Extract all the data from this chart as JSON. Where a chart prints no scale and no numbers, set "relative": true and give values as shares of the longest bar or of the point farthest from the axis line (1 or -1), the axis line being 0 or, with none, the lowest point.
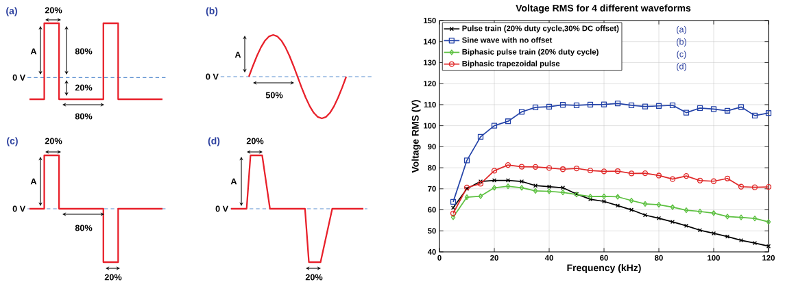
{
  "chart_data": [
    {
      "type": "step",
      "relative": true,
      "title": "(a)",
      "color": "#e8202a",
      "categories": [
        null,
        null,
        null,
        null,
        null,
        null,
        null,
        null,
        null,
        null
      ],
      "values": [
        -0.4,
        1,
        -0.4,
        -0.4,
        -0.4,
        1,
        -0.4,
        -0.4,
        -0.4,
        -0.4
      ],
      "ref_lines": [
        {
          "axis": "y",
          "value": 0,
          "label": "0 V",
          "color": "#5b8fd0",
          "line_style": "dashed"
        }
      ],
      "annotations": [
        "20%",
        "A",
        "80%",
        "20%",
        "80%"
      ]
    },
    {
      "type": "line",
      "relative": true,
      "title": "(b)",
      "color": "#e8202a",
      "categories": [
        null,
        null,
        null,
        null,
        null,
        null,
        null,
        null,
        null,
        null,
        null,
        null,
        null,
        null,
        null,
        null,
        null,
        null,
        null,
        null,
        null,
        null,
        null,
        null,
        null
      ],
      "values": [
        0,
        0.259,
        0.5,
        0.707,
        0.866,
        0.966,
        1,
        0.966,
        0.866,
        0.707,
        0.5,
        0.259,
        0,
        -0.259,
        -0.5,
        -0.707,
        -0.866,
        -0.966,
        -1,
        -0.966,
        -0.866,
        -0.707,
        -0.5,
        -0.259,
        0
      ],
      "ref_lines": [
        {
          "axis": "y",
          "value": 0,
          "label": "0 V",
          "color": "#5b8fd0",
          "line_style": "dashed"
        }
      ],
      "annotations": [
        "A",
        "50%"
      ]
    },
    {
      "type": "step",
      "relative": true,
      "title": "(c)",
      "color": "#e8202a",
      "categories": [
        null,
        null,
        null,
        null,
        null,
        null,
        null,
        null,
        null,
        null
      ],
      "values": [
        0,
        1,
        0,
        0,
        0,
        -1,
        0,
        0,
        0,
        0
      ],
      "ref_lines": [
        {
          "axis": "y",
          "value": 0,
          "label": "0 V",
          "color": "#5b8fd0",
          "line_style": "dashed"
        }
      ],
      "annotations": [
        "20%",
        "A",
        "80%",
        "20%"
      ]
    },
    {
      "type": "line",
      "relative": true,
      "title": "(d)",
      "color": "#e8202a",
      "categories": [
        null,
        null,
        null,
        null,
        null,
        null,
        null,
        null,
        null,
        null,
        null,
        null,
        null,
        null,
        null,
        null,
        null,
        null,
        null,
        null,
        null,
        null,
        null,
        null,
        null,
        null,
        null,
        null,
        null,
        null,
        null,
        null,
        null,
        null,
        null
      ],
      "values": [
        0,
        0,
        0,
        0,
        0,
        1,
        1,
        1,
        1,
        0.5,
        0,
        0,
        0,
        0,
        0,
        0,
        0,
        0,
        0,
        0,
        -1,
        -1,
        -1,
        -1,
        -0.667,
        -0.333,
        0,
        0,
        0,
        0,
        0,
        0,
        0,
        0,
        0
      ],
      "ref_lines": [
        {
          "axis": "y",
          "value": 0,
          "label": "0 V",
          "color": "#5b8fd0",
          "line_style": "dashed"
        }
      ],
      "annotations": [
        "20%",
        "A",
        "20%"
      ]
    },
    {
      "type": "line",
      "title": "Voltage RMS for 4 different waveforms",
      "xlabel": "Frequency (kHz)",
      "ylabel": "Voltage RMS (V)",
      "x": [
        5,
        10,
        15,
        20,
        25,
        30,
        35,
        40,
        45,
        50,
        55,
        60,
        65,
        70,
        75,
        80,
        85,
        90,
        95,
        100,
        105,
        110,
        115,
        120
      ],
      "series": [
        {
          "name": "Pulse train (20% duty cycle,30% DC offset)",
          "color": "#000000",
          "marker": "cross",
          "values": [
            61,
            70,
            73.5,
            74,
            74,
            73.5,
            71.5,
            71,
            70.5,
            67.5,
            65,
            64,
            62,
            60,
            57.5,
            56,
            54.3,
            52.4,
            50.3,
            48.8,
            47.3,
            45.5,
            44.2,
            42.7
          ]
        },
        {
          "name": "Sine wave with no offset",
          "color": "#2443a8",
          "marker": "square",
          "values": [
            63.8,
            83.5,
            94.7,
            100,
            102.1,
            106.6,
            108.7,
            109,
            109.9,
            109.7,
            110,
            110.1,
            110.6,
            109.7,
            109.1,
            109.4,
            109.7,
            106.2,
            108.4,
            107.9,
            107.1,
            108.9,
            104.8,
            106
          ]
        },
        {
          "name": "Biphasic pulse train (20% duty cycle)",
          "color": "#5cc040",
          "marker": "diamond",
          "values": [
            56.5,
            66,
            66.5,
            70.5,
            71.2,
            70.5,
            69,
            68.8,
            68.3,
            67.3,
            66.3,
            66.4,
            66.2,
            64.4,
            62.8,
            62.4,
            61.3,
            59.8,
            59.2,
            58.4,
            56.8,
            56.4,
            55.9,
            54.3
          ]
        },
        {
          "name": "Biphasic trapezoidal pulse",
          "color": "#e02828",
          "marker": "circle",
          "values": [
            58.3,
            70.6,
            72.4,
            78.6,
            81.3,
            80.5,
            80.4,
            79.9,
            79.3,
            79.7,
            78.7,
            78.3,
            78.4,
            77.3,
            77.4,
            76.3,
            74.6,
            76.1,
            73.9,
            73.6,
            74.9,
            71,
            70.7,
            70.9
          ]
        }
      ],
      "xlim": [
        0,
        120
      ],
      "ylim": [
        40,
        150
      ],
      "xticks": [
        0,
        20,
        40,
        60,
        80,
        100,
        120
      ],
      "yticks": [
        40,
        50,
        60,
        70,
        80,
        90,
        100,
        110,
        120,
        130,
        140,
        150
      ],
      "grid": true,
      "legend": "top left",
      "annotations": [
        "(a)",
        "(b)",
        "(c)",
        "(d)"
      ]
    }
  ]
}
